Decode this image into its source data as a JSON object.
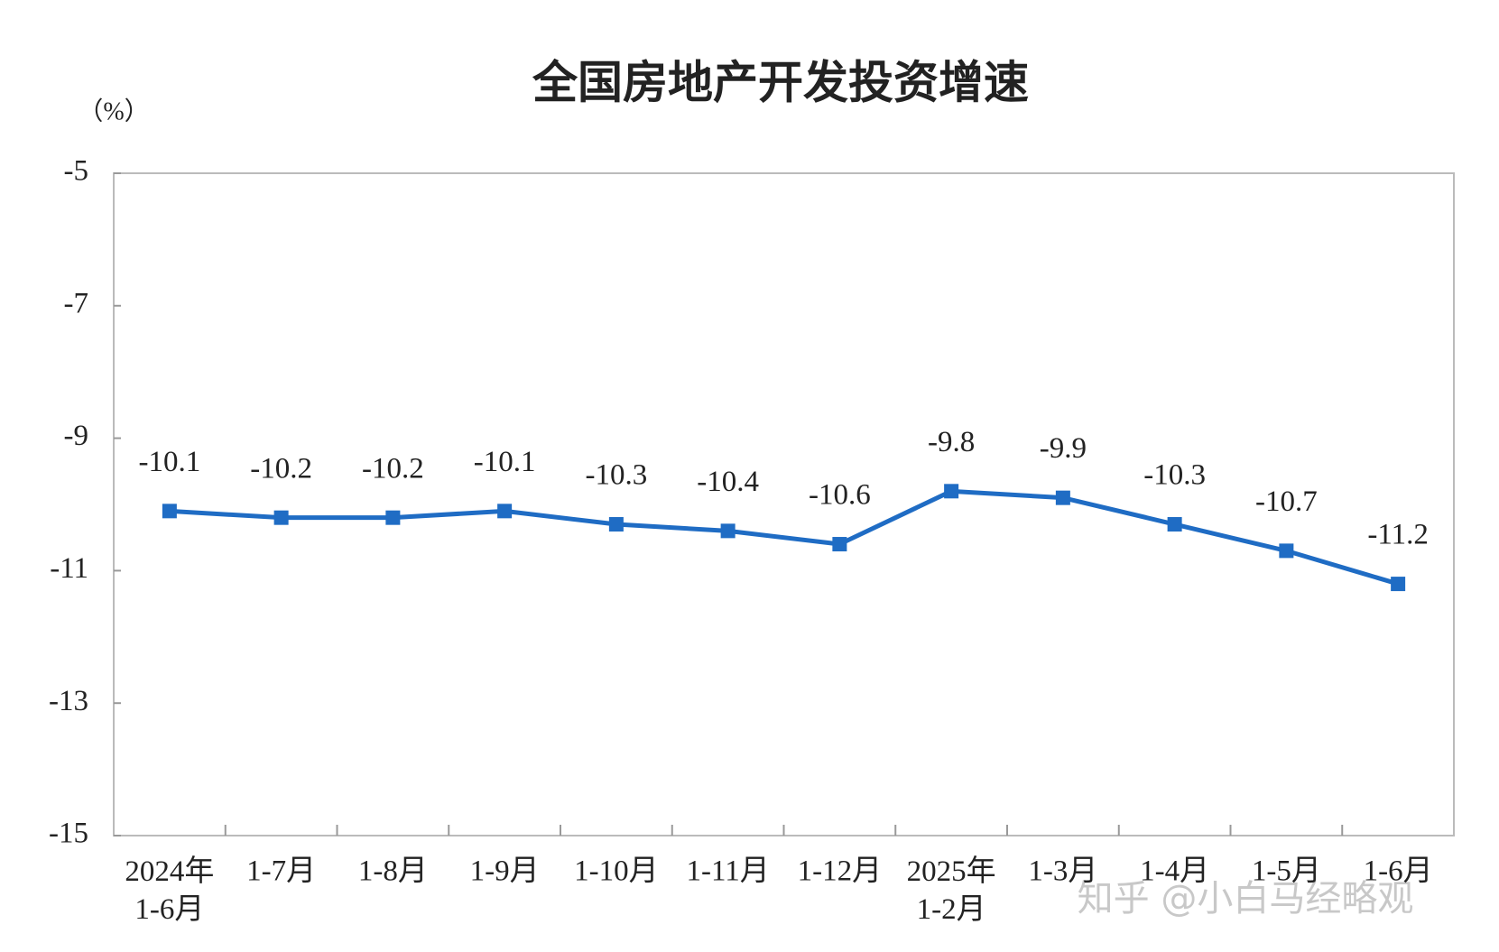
{
  "chart_data": {
    "type": "line",
    "title": "全国房地产开发投资增速",
    "y_unit": "（%）",
    "categories": [
      "2024年\n1-6月",
      "1-7月",
      "1-8月",
      "1-9月",
      "1-10月",
      "1-11月",
      "1-12月",
      "2025年\n1-2月",
      "1-3月",
      "1-4月",
      "1-5月",
      "1-6月"
    ],
    "series": [
      {
        "name": "全国房地产开发投资增速",
        "color": "#1f6cc4",
        "values": [
          -10.1,
          -10.2,
          -10.2,
          -10.1,
          -10.3,
          -10.4,
          -10.6,
          -9.8,
          -9.9,
          -10.3,
          -10.7,
          -11.2
        ]
      }
    ],
    "ylim": [
      -15,
      -5
    ],
    "yticks": [
      -15,
      -13,
      -11,
      -9,
      -7,
      -5
    ],
    "grid": false,
    "watermark": "知乎 @小白马经略观"
  }
}
